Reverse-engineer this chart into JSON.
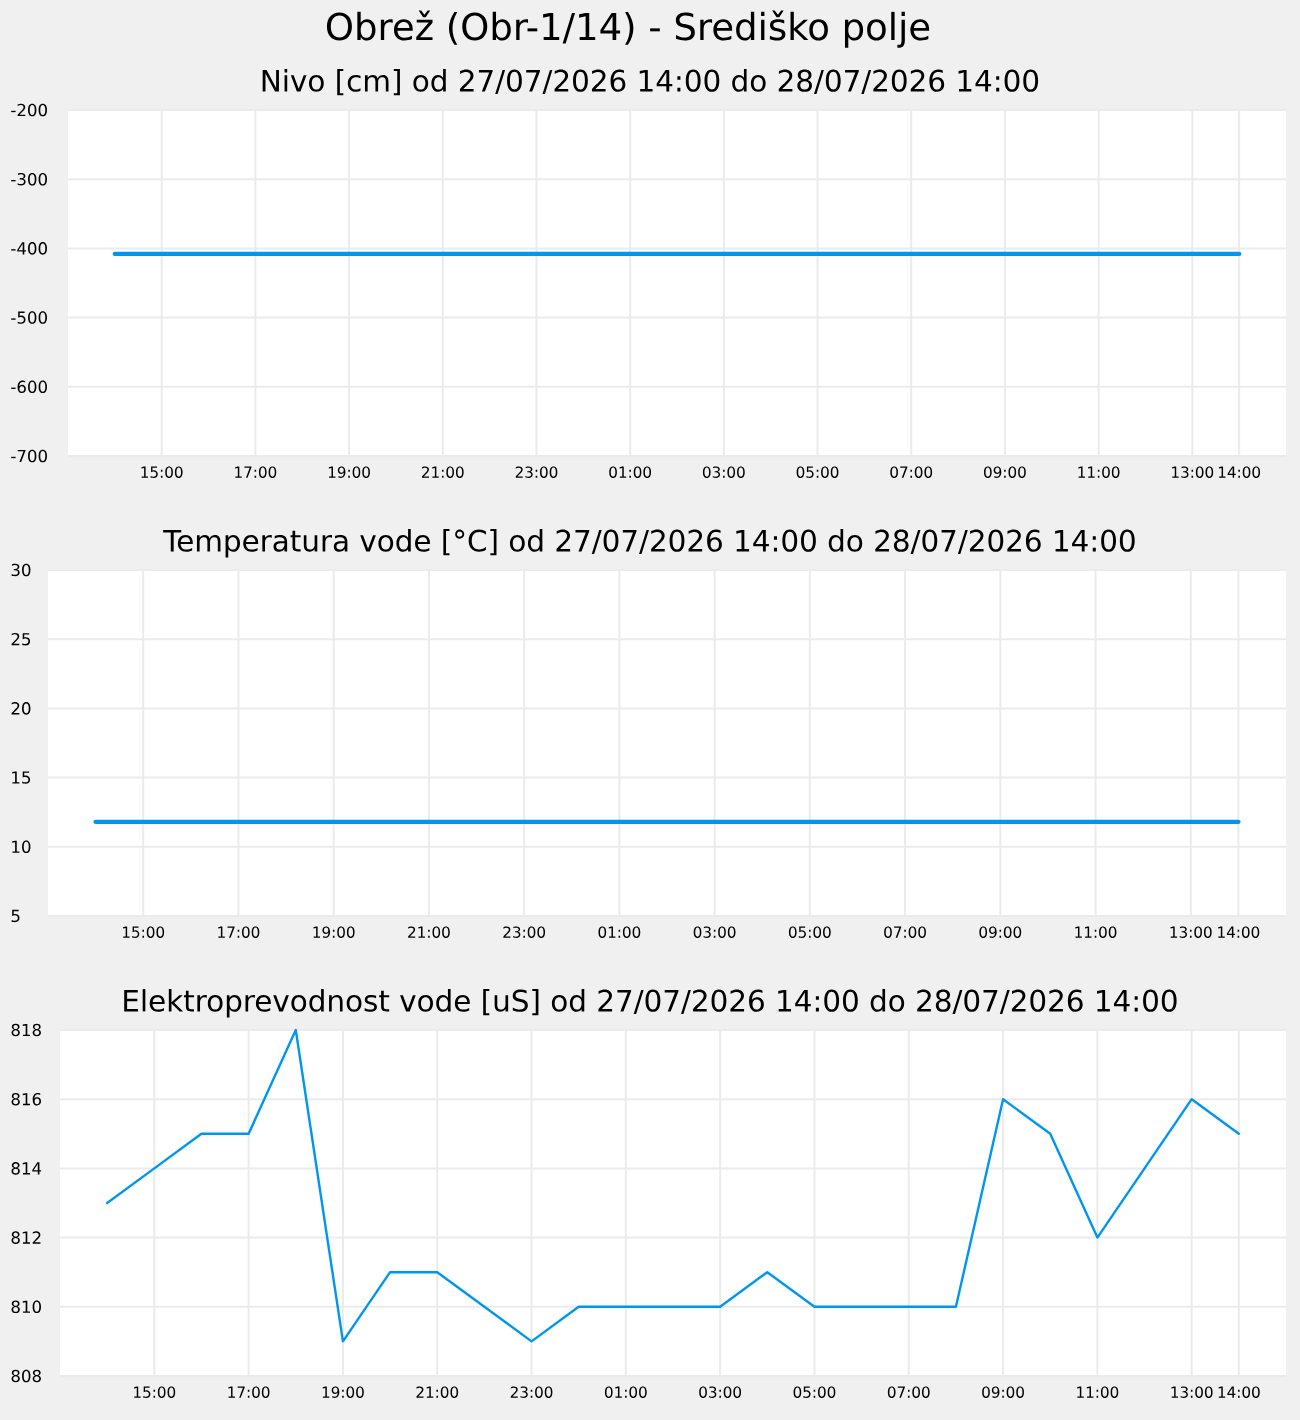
{
  "chart_data": [
    {
      "type": "line",
      "title": "Obrež (Obr-1/14) - Središko polje",
      "subtitle": "Nivo [cm] od 27/07/2026 14:00 do 28/07/2026 14:00",
      "x": [
        "2026-07-27T14:00",
        "2026-07-27T15:00",
        "2026-07-27T16:00",
        "2026-07-27T17:00",
        "2026-07-27T18:00",
        "2026-07-27T19:00",
        "2026-07-27T20:00",
        "2026-07-27T21:00",
        "2026-07-27T22:00",
        "2026-07-27T23:00",
        "2026-07-28T00:00",
        "2026-07-28T01:00",
        "2026-07-28T02:00",
        "2026-07-28T03:00",
        "2026-07-28T04:00",
        "2026-07-28T05:00",
        "2026-07-28T06:00",
        "2026-07-28T07:00",
        "2026-07-28T08:00",
        "2026-07-28T09:00",
        "2026-07-28T10:00",
        "2026-07-28T11:00",
        "2026-07-28T12:00",
        "2026-07-28T13:00",
        "2026-07-28T14:00"
      ],
      "values": [
        -408,
        -408,
        -408,
        -408,
        -408,
        -408,
        -408,
        -408,
        -408,
        -408,
        -408,
        -408,
        -408,
        -408,
        -408,
        -408,
        -408,
        -408,
        -408,
        -408,
        -408,
        -408,
        -408,
        -408,
        -408
      ],
      "color": "#0096f0",
      "xlim": [
        "2026-07-27T13:00",
        "2026-07-28T15:00"
      ],
      "xticks": [
        {
          "value": "2026-07-27T15:00",
          "label": "15:00"
        },
        {
          "value": "2026-07-27T17:00",
          "label": "17:00"
        },
        {
          "value": "2026-07-27T19:00",
          "label": "19:00"
        },
        {
          "value": "2026-07-27T21:00",
          "label": "21:00"
        },
        {
          "value": "2026-07-27T23:00",
          "label": "23:00"
        },
        {
          "value": "2026-07-28T01:00",
          "label": "01:00"
        },
        {
          "value": "2026-07-28T03:00",
          "label": "03:00"
        },
        {
          "value": "2026-07-28T05:00",
          "label": "05:00"
        },
        {
          "value": "2026-07-28T07:00",
          "label": "07:00"
        },
        {
          "value": "2026-07-28T09:00",
          "label": "09:00"
        },
        {
          "value": "2026-07-28T11:00",
          "label": "11:00"
        },
        {
          "value": "2026-07-28T13:00",
          "label": "13:00"
        },
        {
          "value": "2026-07-28T14:00",
          "label": "14:00"
        }
      ],
      "ylim": [
        -700,
        -200
      ],
      "yticks": [
        -700,
        -600,
        -500,
        -400,
        -300,
        -200
      ],
      "grid": true
    },
    {
      "type": "line",
      "title": "Temperatura vode [°C] od 27/07/2026 14:00 do 28/07/2026 14:00",
      "x": [
        "2026-07-27T14:00",
        "2026-07-27T15:00",
        "2026-07-27T16:00",
        "2026-07-27T17:00",
        "2026-07-27T18:00",
        "2026-07-27T19:00",
        "2026-07-27T20:00",
        "2026-07-27T21:00",
        "2026-07-27T22:00",
        "2026-07-27T23:00",
        "2026-07-28T00:00",
        "2026-07-28T01:00",
        "2026-07-28T02:00",
        "2026-07-28T03:00",
        "2026-07-28T04:00",
        "2026-07-28T05:00",
        "2026-07-28T06:00",
        "2026-07-28T07:00",
        "2026-07-28T08:00",
        "2026-07-28T09:00",
        "2026-07-28T10:00",
        "2026-07-28T11:00",
        "2026-07-28T12:00",
        "2026-07-28T13:00",
        "2026-07-28T14:00"
      ],
      "values": [
        11.8,
        11.8,
        11.8,
        11.8,
        11.8,
        11.8,
        11.8,
        11.8,
        11.8,
        11.8,
        11.8,
        11.8,
        11.8,
        11.8,
        11.8,
        11.8,
        11.8,
        11.8,
        11.8,
        11.8,
        11.8,
        11.8,
        11.8,
        11.8,
        11.8
      ],
      "color": "#0096f0",
      "xlim": [
        "2026-07-27T13:00",
        "2026-07-28T15:00"
      ],
      "xticks": [
        {
          "value": "2026-07-27T15:00",
          "label": "15:00"
        },
        {
          "value": "2026-07-27T17:00",
          "label": "17:00"
        },
        {
          "value": "2026-07-27T19:00",
          "label": "19:00"
        },
        {
          "value": "2026-07-27T21:00",
          "label": "21:00"
        },
        {
          "value": "2026-07-27T23:00",
          "label": "23:00"
        },
        {
          "value": "2026-07-28T01:00",
          "label": "01:00"
        },
        {
          "value": "2026-07-28T03:00",
          "label": "03:00"
        },
        {
          "value": "2026-07-28T05:00",
          "label": "05:00"
        },
        {
          "value": "2026-07-28T07:00",
          "label": "07:00"
        },
        {
          "value": "2026-07-28T09:00",
          "label": "09:00"
        },
        {
          "value": "2026-07-28T11:00",
          "label": "11:00"
        },
        {
          "value": "2026-07-28T13:00",
          "label": "13:00"
        },
        {
          "value": "2026-07-28T14:00",
          "label": "14:00"
        }
      ],
      "ylim": [
        5,
        30
      ],
      "yticks": [
        5,
        10,
        15,
        20,
        25,
        30
      ],
      "grid": true
    },
    {
      "type": "line",
      "title": "Elektroprevodnost vode [uS] od 27/07/2026 14:00 do 28/07/2026 14:00",
      "x": [
        "2026-07-27T14:00",
        "2026-07-27T15:00",
        "2026-07-27T16:00",
        "2026-07-27T17:00",
        "2026-07-27T18:00",
        "2026-07-27T19:00",
        "2026-07-27T20:00",
        "2026-07-27T21:00",
        "2026-07-27T22:00",
        "2026-07-27T23:00",
        "2026-07-28T00:00",
        "2026-07-28T01:00",
        "2026-07-28T02:00",
        "2026-07-28T03:00",
        "2026-07-28T04:00",
        "2026-07-28T05:00",
        "2026-07-28T06:00",
        "2026-07-28T07:00",
        "2026-07-28T08:00",
        "2026-07-28T09:00",
        "2026-07-28T10:00",
        "2026-07-28T11:00",
        "2026-07-28T12:00",
        "2026-07-28T13:00",
        "2026-07-28T14:00"
      ],
      "values": [
        813,
        814,
        815,
        815,
        818,
        809,
        811,
        811,
        810,
        809,
        810,
        810,
        810,
        810,
        811,
        810,
        810,
        810,
        810,
        816,
        815,
        812,
        814,
        816,
        815
      ],
      "color": "#0096f0",
      "xlim": [
        "2026-07-27T13:00",
        "2026-07-28T15:00"
      ],
      "xticks": [
        {
          "value": "2026-07-27T15:00",
          "label": "15:00"
        },
        {
          "value": "2026-07-27T17:00",
          "label": "17:00"
        },
        {
          "value": "2026-07-27T19:00",
          "label": "19:00"
        },
        {
          "value": "2026-07-27T21:00",
          "label": "21:00"
        },
        {
          "value": "2026-07-27T23:00",
          "label": "23:00"
        },
        {
          "value": "2026-07-28T01:00",
          "label": "01:00"
        },
        {
          "value": "2026-07-28T03:00",
          "label": "03:00"
        },
        {
          "value": "2026-07-28T05:00",
          "label": "05:00"
        },
        {
          "value": "2026-07-28T07:00",
          "label": "07:00"
        },
        {
          "value": "2026-07-28T09:00",
          "label": "09:00"
        },
        {
          "value": "2026-07-28T11:00",
          "label": "11:00"
        },
        {
          "value": "2026-07-28T13:00",
          "label": "13:00"
        },
        {
          "value": "2026-07-28T14:00",
          "label": "14:00"
        }
      ],
      "ylim": [
        808,
        818
      ],
      "yticks": [
        808,
        810,
        812,
        814,
        816,
        818
      ],
      "grid": true
    }
  ]
}
